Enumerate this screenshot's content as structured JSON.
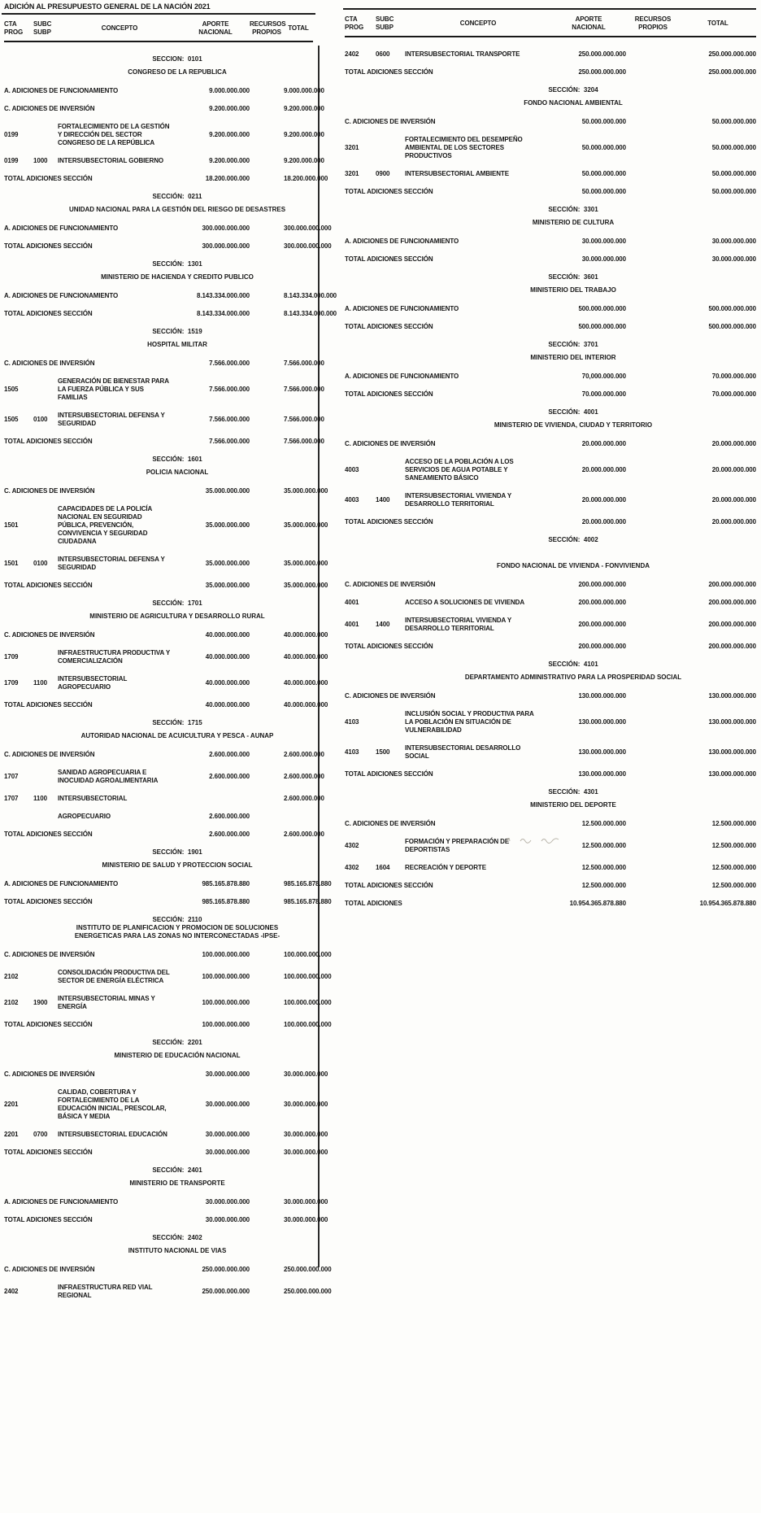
{
  "title": "ADICIÓN AL PRESUPUESTO GENERAL DE LA NACIÓN 2021",
  "headers": {
    "cta": [
      "CTA",
      "PROG"
    ],
    "subc": [
      "SUBC",
      "SUBP"
    ],
    "concepto": "CONCEPTO",
    "aporte": [
      "APORTE",
      "NACIONAL"
    ],
    "recursos": [
      "RECURSOS",
      "PROPIOS"
    ],
    "total": "TOTAL"
  },
  "colors": {
    "ink": "#161616",
    "paper": "#fdfdfb",
    "rule": "#1d1d1d"
  },
  "columns": [
    {
      "rows": [
        {
          "t": "sec",
          "code": "SECCION:  0101",
          "name": "CONGRESO DE LA REPUBLICA"
        },
        {
          "t": "label",
          "text": "A. ADICIONES DE FUNCIONAMIENTO",
          "ap": "9.000.000.000",
          "tot": "9.000.000.000"
        },
        {
          "t": "label",
          "text": "C. ADICIONES DE INVERSIÓN",
          "ap": "9.200.000.000",
          "tot": "9.200.000.000"
        },
        {
          "t": "item",
          "prog": "0199",
          "subp": "",
          "con": "FORTALECIMIENTO DE LA GESTIÓN Y DIRECCIÓN DEL SECTOR CONGRESO DE LA REPÚBLICA",
          "ap": "9.200.000.000",
          "tot": "9.200.000.000"
        },
        {
          "t": "item",
          "prog": "0199",
          "subp": "1000",
          "con": "INTERSUBSECTORIAL GOBIERNO",
          "ap": "9.200.000.000",
          "tot": "9.200.000.000"
        },
        {
          "t": "total",
          "text": "TOTAL ADICIONES SECCIÓN",
          "ap": "18.200.000.000",
          "tot": "18.200.000.000"
        },
        {
          "t": "sec",
          "code": "SECCIÓN:  0211",
          "name": "UNIDAD NACIONAL PARA LA GESTIÓN DEL RIESGO DE DESASTRES"
        },
        {
          "t": "label",
          "text": "A. ADICIONES DE FUNCIONAMIENTO",
          "ap": "300.000.000.000",
          "tot": "300.000.000.000"
        },
        {
          "t": "total",
          "text": "TOTAL ADICIONES SECCIÓN",
          "ap": "300.000.000.000",
          "tot": "300.000.000.000"
        },
        {
          "t": "sec",
          "code": "SECCIÓN:  1301",
          "name": "MINISTERIO DE HACIENDA Y CREDITO PUBLICO"
        },
        {
          "t": "label",
          "text": "A. ADICIONES DE FUNCIONAMIENTO",
          "ap": "8.143.334.000.000",
          "tot": "8.143.334.000.000"
        },
        {
          "t": "total",
          "text": "TOTAL ADICIONES SECCIÓN",
          "ap": "8.143.334.000.000",
          "tot": "8.143.334.000.000"
        },
        {
          "t": "sec",
          "code": "SECCIÓN:  1519",
          "name": "HOSPITAL MILITAR"
        },
        {
          "t": "label",
          "text": "C. ADICIONES DE INVERSIÓN",
          "ap": "7.566.000.000",
          "tot": "7.566.000.000"
        },
        {
          "t": "item",
          "prog": "1505",
          "subp": "",
          "con": "GENERACIÓN DE BIENESTAR PARA LA FUERZA PÚBLICA Y SUS FAMILIAS",
          "ap": "7.566.000.000",
          "tot": "7.566.000.000"
        },
        {
          "t": "item",
          "prog": "1505",
          "subp": "0100",
          "con": "INTERSUBSECTORIAL DEFENSA Y SEGURIDAD",
          "ap": "7.566.000.000",
          "tot": "7.566.000.000"
        },
        {
          "t": "total",
          "text": "TOTAL ADICIONES SECCIÓN",
          "ap": "7.566.000.000",
          "tot": "7.566.000.000"
        },
        {
          "t": "sec",
          "code": "SECCIÓN:  1601",
          "name": "POLICIA NACIONAL"
        },
        {
          "t": "label",
          "text": "C. ADICIONES DE INVERSIÓN",
          "ap": "35.000.000.000",
          "tot": "35.000.000.000"
        },
        {
          "t": "item",
          "prog": "1501",
          "subp": "",
          "con": "CAPACIDADES DE LA POLICÍA NACIONAL EN SEGURIDAD PÚBLICA, PREVENCIÓN, CONVIVENCIA Y SEGURIDAD CIUDADANA",
          "ap": "35.000.000.000",
          "tot": "35.000.000.000"
        },
        {
          "t": "item",
          "prog": "1501",
          "subp": "0100",
          "con": "INTERSUBSECTORIAL DEFENSA Y SEGURIDAD",
          "ap": "35.000.000.000",
          "tot": "35.000.000.000"
        },
        {
          "t": "total",
          "text": "TOTAL ADICIONES SECCIÓN",
          "ap": "35.000.000.000",
          "tot": "35.000.000.000"
        },
        {
          "t": "sec",
          "code": "SECCIÓN:  1701",
          "name": "MINISTERIO DE AGRICULTURA Y DESARROLLO RURAL"
        },
        {
          "t": "label",
          "text": "C. ADICIONES DE INVERSIÓN",
          "ap": "40.000.000.000",
          "tot": "40.000.000.000"
        },
        {
          "t": "item",
          "prog": "1709",
          "subp": "",
          "con": "INFRAESTRUCTURA PRODUCTIVA Y COMERCIALIZACIÓN",
          "ap": "40.000.000.000",
          "tot": "40.000.000.000"
        },
        {
          "t": "item",
          "prog": "1709",
          "subp": "1100",
          "con": "INTERSUBSECTORIAL AGROPECUARIO",
          "ap": "40.000.000.000",
          "tot": "40.000.000.000"
        },
        {
          "t": "total",
          "text": "TOTAL ADICIONES SECCIÓN",
          "ap": "40.000.000.000",
          "tot": "40.000.000.000"
        },
        {
          "t": "sec",
          "code": "SECCIÓN:  1715",
          "name": "AUTORIDAD NACIONAL DE ACUICULTURA Y PESCA - AUNAP"
        },
        {
          "t": "label",
          "text": "C. ADICIONES DE INVERSIÓN",
          "ap": "2.600.000.000",
          "tot": "2.600.000.000"
        },
        {
          "t": "item",
          "prog": "1707",
          "subp": "",
          "con": "SANIDAD AGROPECUARIA E INOCUIDAD AGROALIMENTARIA",
          "ap": "2.600.000.000",
          "tot": "2.600.000.000"
        },
        {
          "t": "item",
          "prog": "1707",
          "subp": "1100",
          "con": "INTERSUBSECTORIAL",
          "ap": "",
          "tot": "2.600.000.000"
        },
        {
          "t": "item",
          "prog": "",
          "subp": "",
          "con": "AGROPECUARIO",
          "ap": "2.600.000.000",
          "tot": ""
        },
        {
          "t": "total",
          "text": "TOTAL ADICIONES SECCIÓN",
          "ap": "2.600.000.000",
          "tot": "2.600.000.000"
        },
        {
          "t": "sec",
          "code": "SECCIÓN:  1901",
          "name": "MINISTERIO DE SALUD Y PROTECCION SOCIAL"
        },
        {
          "t": "label",
          "text": "A. ADICIONES DE FUNCIONAMIENTO",
          "ap": "985.165.878.880",
          "tot": "985.165.878.880"
        },
        {
          "t": "total",
          "text": "TOTAL ADICIONES SECCIÓN",
          "ap": "985.165.878.880",
          "tot": "985.165.878.880"
        },
        {
          "t": "sec",
          "code": "SECCIÓN:  2110",
          "name": "INSTITUTO DE PLANIFICACION Y PROMOCION DE SOLUCIONES  ENERGETICAS PARA LAS ZONAS NO INTERCONECTADAS -IPSE-"
        },
        {
          "t": "label",
          "text": "C. ADICIONES DE INVERSIÓN",
          "ap": "100.000.000.000",
          "tot": "100.000.000.000"
        },
        {
          "t": "item",
          "prog": "2102",
          "subp": "",
          "con": "CONSOLIDACIÓN PRODUCTIVA DEL SECTOR DE ENERGÍA ELÉCTRICA",
          "ap": "100.000.000.000",
          "tot": "100.000.000.000"
        },
        {
          "t": "item",
          "prog": "2102",
          "subp": "1900",
          "con": "INTERSUBSECTORIAL MINAS Y ENERGÍA",
          "ap": "100.000.000.000",
          "tot": "100.000.000.000"
        },
        {
          "t": "total",
          "text": "TOTAL ADICIONES SECCIÓN",
          "ap": "100.000.000.000",
          "tot": "100.000.000.000"
        },
        {
          "t": "sec",
          "code": "SECCIÓN:  2201",
          "name": "MINISTERIO DE EDUCACIÓN NACIONAL"
        },
        {
          "t": "label",
          "text": "C. ADICIONES DE INVERSIÓN",
          "ap": "30.000.000.000",
          "tot": "30.000.000.000"
        },
        {
          "t": "item",
          "prog": "2201",
          "subp": "",
          "con": "CALIDAD, COBERTURA Y FORTALECIMIENTO DE LA EDUCACIÓN INICIAL, PRESCOLAR, BÁSICA Y MEDIA",
          "ap": "30.000.000.000",
          "tot": "30.000.000.000"
        },
        {
          "t": "item",
          "prog": "2201",
          "subp": "0700",
          "con": "INTERSUBSECTORIAL EDUCACIÓN",
          "ap": "30.000.000.000",
          "tot": "30.000.000.000"
        },
        {
          "t": "total",
          "text": "TOTAL ADICIONES SECCIÓN",
          "ap": "30.000.000.000",
          "tot": "30.000.000.000"
        },
        {
          "t": "sec",
          "code": "SECCIÓN:  2401",
          "name": "MINISTERIO DE TRANSPORTE"
        },
        {
          "t": "label",
          "text": "A. ADICIONES DE FUNCIONAMIENTO",
          "ap": "30.000.000.000",
          "tot": "30.000.000.000"
        },
        {
          "t": "total",
          "text": "TOTAL ADICIONES SECCIÓN",
          "ap": "30.000.000.000",
          "tot": "30.000.000.000"
        },
        {
          "t": "sec",
          "code": "SECCIÓN:  2402",
          "name": "INSTITUTO NACIONAL DE VIAS"
        },
        {
          "t": "label",
          "text": "C. ADICIONES DE INVERSIÓN",
          "ap": "250.000.000.000",
          "tot": "250.000.000.000"
        },
        {
          "t": "item",
          "prog": "2402",
          "subp": "",
          "con": "INFRAESTRUCTURA RED VIAL REGIONAL",
          "ap": "250.000.000.000",
          "tot": "250.000.000.000"
        }
      ]
    },
    {
      "rows": [
        {
          "t": "item",
          "prog": "2402",
          "subp": "0600",
          "con": "INTERSUBSECTORIAL TRANSPORTE",
          "ap": "250.000.000.000",
          "tot": "250.000.000.000"
        },
        {
          "t": "total",
          "text": "TOTAL ADICIONES SECCIÓN",
          "ap": "250.000.000.000",
          "tot": "250.000.000.000"
        },
        {
          "t": "sec",
          "code": "SECCIÓN:  3204",
          "name": "FONDO NACIONAL AMBIENTAL"
        },
        {
          "t": "label",
          "text": "C. ADICIONES DE INVERSIÓN",
          "ap": "50.000.000.000",
          "tot": "50.000.000.000"
        },
        {
          "t": "item",
          "prog": "3201",
          "subp": "",
          "con": "FORTALECIMIENTO DEL DESEMPEÑO AMBIENTAL DE LOS SECTORES PRODUCTIVOS",
          "ap": "50.000.000.000",
          "tot": "50.000.000.000"
        },
        {
          "t": "item",
          "prog": "3201",
          "subp": "0900",
          "con": "INTERSUBSECTORIAL AMBIENTE",
          "ap": "50.000.000.000",
          "tot": "50.000.000.000"
        },
        {
          "t": "total",
          "text": "TOTAL ADICIONES SECCIÓN",
          "ap": "50.000.000.000",
          "tot": "50.000.000.000"
        },
        {
          "t": "sec",
          "code": "SECCIÓN:  3301",
          "name": "MINISTERIO DE CULTURA"
        },
        {
          "t": "label",
          "text": "A. ADICIONES DE FUNCIONAMIENTO",
          "ap": "30.000.000.000",
          "tot": "30.000.000.000"
        },
        {
          "t": "total",
          "text": "TOTAL ADICIONES SECCIÓN",
          "ap": "30.000.000.000",
          "tot": "30.000.000.000"
        },
        {
          "t": "sec",
          "code": "SECCIÓN:  3601",
          "name": "MINISTERIO DEL TRABAJO"
        },
        {
          "t": "label",
          "text": "A. ADICIONES DE FUNCIONAMIENTO",
          "ap": "500.000.000.000",
          "tot": "500.000.000.000"
        },
        {
          "t": "total",
          "text": "TOTAL ADICIONES SECCIÓN",
          "ap": "500.000.000.000",
          "tot": "500.000.000.000"
        },
        {
          "t": "sec",
          "code": "SECCIÓN:  3701",
          "name": "MINISTERIO DEL INTERIOR"
        },
        {
          "t": "label",
          "text": "A. ADICIONES DE FUNCIONAMIENTO",
          "ap": "70,000.000.000",
          "tot": "70.000.000.000"
        },
        {
          "t": "total",
          "text": "TOTAL ADICIONES SECCIÓN",
          "ap": "70.000.000.000",
          "tot": "70.000.000.000"
        },
        {
          "t": "sec",
          "code": "SECCIÓN:  4001",
          "name": "MINISTERIO DE VIVIENDA, CIUDAD Y TERRITORIO"
        },
        {
          "t": "label",
          "text": "C. ADICIONES DE INVERSIÓN",
          "ap": "20.000.000.000",
          "tot": "20.000.000.000"
        },
        {
          "t": "item",
          "prog": "4003",
          "subp": "",
          "con": "ACCESO DE LA POBLACIÓN A LOS SERVICIOS DE AGUA POTABLE Y SANEAMIENTO BÁSICO",
          "ap": "20.000.000.000",
          "tot": "20.000.000.000"
        },
        {
          "t": "item",
          "prog": "4003",
          "subp": "1400",
          "con": "INTERSUBSECTORIAL VIVIENDA Y DESARROLLO TERRITORIAL",
          "ap": "20.000.000.000",
          "tot": "20.000.000.000"
        },
        {
          "t": "total",
          "text": "TOTAL ADICIONES SECCIÓN",
          "ap": "20.000.000.000",
          "tot": "20.000.000.000"
        },
        {
          "t": "sec",
          "code": "SECCIÓN:  4002",
          "name": "FONDO NACIONAL DE VIVIENDA - FONVIVIENDA",
          "split": true
        },
        {
          "t": "label",
          "text": "C. ADICIONES DE INVERSIÓN",
          "ap": "200.000.000.000",
          "tot": "200.000.000.000"
        },
        {
          "t": "item",
          "prog": "4001",
          "subp": "",
          "con": "ACCESO A SOLUCIONES DE VIVIENDA",
          "ap": "200.000.000.000",
          "tot": "200.000.000.000"
        },
        {
          "t": "item",
          "prog": "4001",
          "subp": "1400",
          "con": "INTERSUBSECTORIAL VIVIENDA Y DESARROLLO TERRITORIAL",
          "ap": "200.000.000.000",
          "tot": "200.000.000.000"
        },
        {
          "t": "total",
          "text": "TOTAL ADICIONES SECCIÓN",
          "ap": "200.000.000.000",
          "tot": "200.000.000.000"
        },
        {
          "t": "sec",
          "code": "SECCIÓN:  4101",
          "name": "DEPARTAMENTO ADMINISTRATIVO PARA LA PROSPERIDAD SOCIAL"
        },
        {
          "t": "label",
          "text": "C. ADICIONES DE INVERSIÓN",
          "ap": "130.000.000.000",
          "tot": "130.000.000.000"
        },
        {
          "t": "item",
          "prog": "4103",
          "subp": "",
          "con": "INCLUSIÓN SOCIAL Y PRODUCTIVA PARA LA POBLACIÓN EN SITUACIÓN DE VULNERABILIDAD",
          "ap": "130.000.000.000",
          "tot": "130.000.000.000"
        },
        {
          "t": "item",
          "prog": "4103",
          "subp": "1500",
          "con": "INTERSUBSECTORIAL DESARROLLO SOCIAL",
          "ap": "130.000.000.000",
          "tot": "130.000.000.000"
        },
        {
          "t": "total",
          "text": "TOTAL ADICIONES SECCIÓN",
          "ap": "130.000.000.000",
          "tot": "130.000.000.000"
        },
        {
          "t": "sec",
          "code": "SECCIÓN:  4301",
          "name": "MINISTERIO DEL DEPORTE"
        },
        {
          "t": "label",
          "text": "C. ADICIONES DE INVERSIÓN",
          "ap": "12.500.000.000",
          "tot": "12.500.000.000"
        },
        {
          "t": "item",
          "prog": "4302",
          "subp": "",
          "con": "FORMACIÓN Y PREPARACIÓN DE DEPORTISTAS",
          "ap": "12.500.000.000",
          "tot": "12.500.000.000",
          "mark": true
        },
        {
          "t": "item",
          "prog": "4302",
          "subp": "1604",
          "con": "RECREACIÓN Y DEPORTE",
          "ap": "12.500.000.000",
          "tot": "12.500.000.000"
        },
        {
          "t": "total",
          "text": "TOTAL ADICIONES SECCIÓN",
          "ap": "12.500.000.000",
          "tot": "12.500.000.000"
        },
        {
          "t": "grandtotal",
          "text": "TOTAL ADICIONES",
          "ap": "10.954.365.878.880",
          "tot": "10.954.365.878.880"
        }
      ]
    }
  ]
}
